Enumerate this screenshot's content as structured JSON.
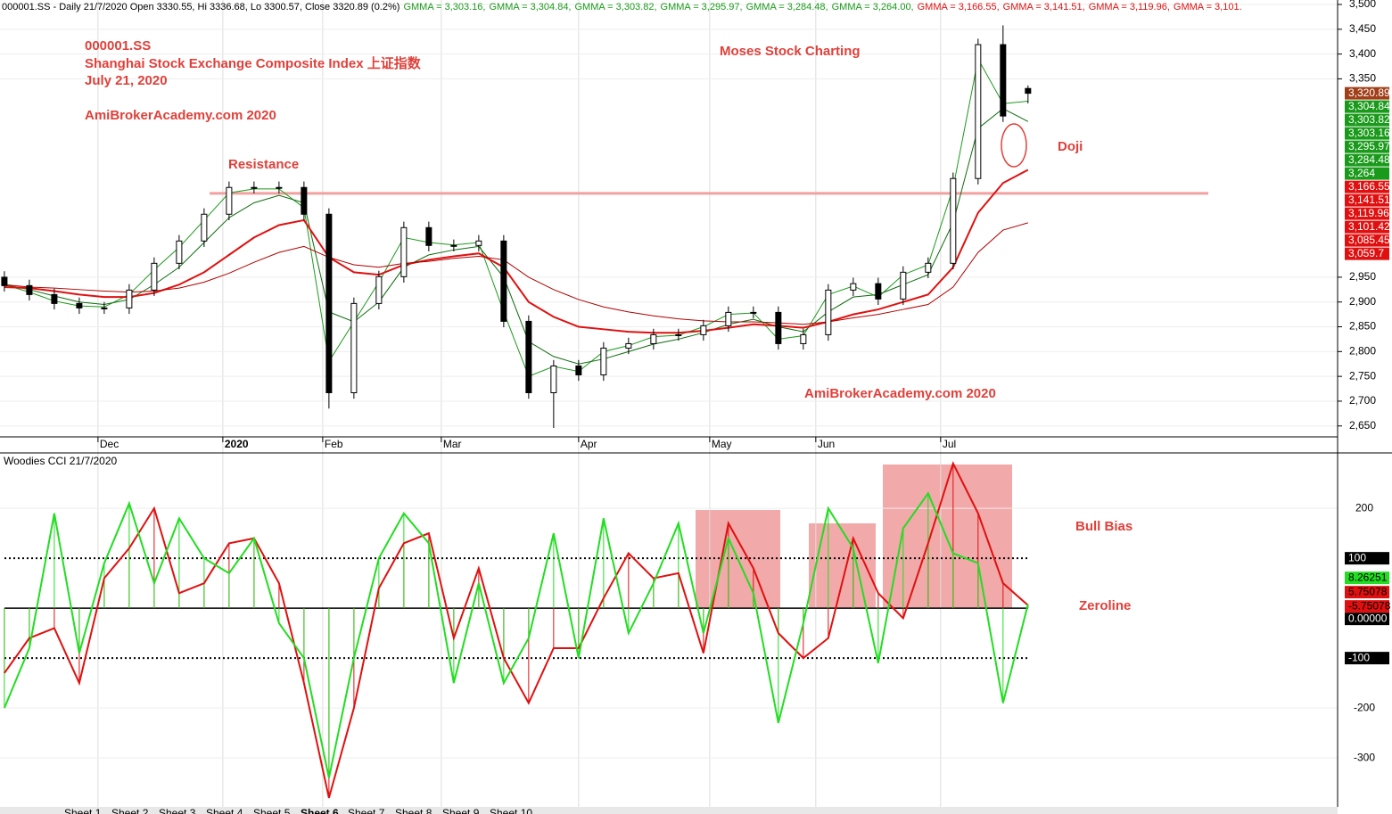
{
  "chart_data": [
    {
      "type": "candlestick",
      "header": "000001.SS - Daily 21/7/2020 Open 3330.55, Hi 3336.68, Lo 3300.57, Close 3320.89 (0.2%)",
      "header_gmma": [
        {
          "label": "GMMA = 3,303.16,",
          "color": "#1a9a1a"
        },
        {
          "label": "GMMA = 3,304.84,",
          "color": "#1a9a1a"
        },
        {
          "label": "GMMA = 3,303.82,",
          "color": "#1a9a1a"
        },
        {
          "label": "GMMA = 3,295.97,",
          "color": "#1a9a1a"
        },
        {
          "label": "GMMA = 3,284.48,",
          "color": "#1a9a1a"
        },
        {
          "label": "GMMA = 3,264.00,",
          "color": "#1a9a1a"
        },
        {
          "label": "GMMA = 3,166.55,",
          "color": "#e01010"
        },
        {
          "label": "GMMA = 3,141.51,",
          "color": "#e01010"
        },
        {
          "label": "GMMA = 3,119.96,",
          "color": "#e01010"
        },
        {
          "label": "GMMA = 3,101.",
          "color": "#e01010"
        }
      ],
      "x": [
        0,
        4,
        8,
        12,
        16,
        20,
        24,
        28,
        32,
        36,
        40,
        44,
        48,
        52,
        56,
        60,
        64,
        68,
        72,
        76,
        80,
        84,
        88,
        92,
        96,
        100,
        104,
        108,
        112,
        116,
        120,
        124,
        128,
        132,
        136,
        140,
        144,
        148,
        152,
        156,
        160,
        164
      ],
      "open": [
        2950,
        2933,
        2915,
        2897,
        2888,
        2888,
        2924,
        2978,
        3023,
        3077,
        3131,
        3131,
        3131,
        3077,
        2717,
        2897,
        2951,
        3050,
        3014,
        3014,
        3023,
        2861,
        2717,
        2771,
        2753,
        2807,
        2816,
        2834,
        2834,
        2852,
        2879,
        2879,
        2816,
        2834,
        2924,
        2937,
        2906,
        2960,
        2978,
        3149,
        3419,
        3330.55
      ],
      "high": [
        2962,
        2945,
        2927,
        2909,
        2900,
        2936,
        2990,
        3035,
        3089,
        3143,
        3143,
        3143,
        3143,
        3089,
        2909,
        2963,
        3062,
        3062,
        3026,
        3035,
        3035,
        2873,
        2783,
        2783,
        2819,
        2828,
        2846,
        2846,
        2864,
        2891,
        2891,
        2891,
        2846,
        2936,
        2949,
        2949,
        2972,
        2990,
        3161,
        3431,
        3458,
        3336.68
      ],
      "low": [
        2921,
        2903,
        2885,
        2876,
        2876,
        2876,
        2912,
        2966,
        3011,
        3065,
        3119,
        3119,
        3065,
        2685,
        2705,
        2885,
        2939,
        3002,
        3002,
        3002,
        2849,
        2705,
        2646,
        2741,
        2741,
        2795,
        2804,
        2822,
        2822,
        2840,
        2867,
        2804,
        2804,
        2822,
        2912,
        2894,
        2894,
        2948,
        2966,
        3137,
        3263,
        3300.57
      ],
      "close": [
        2933,
        2915,
        2897,
        2888,
        2888,
        2924,
        2978,
        3023,
        3077,
        3131,
        3131,
        3131,
        3077,
        2717,
        2897,
        2951,
        3050,
        3014,
        3014,
        3023,
        2861,
        2717,
        2771,
        2753,
        2807,
        2816,
        2834,
        2834,
        2852,
        2879,
        2879,
        2816,
        2834,
        2924,
        2937,
        2906,
        2960,
        2978,
        3149,
        3419,
        3275,
        3320.89
      ],
      "series": [
        {
          "name": "GMMA fast",
          "color": "#1a9a1a",
          "values": [
            2935,
            2920,
            2902,
            2892,
            2890,
            2915,
            2965,
            3010,
            3065,
            3120,
            3128,
            3128,
            3090,
            2780,
            2860,
            2940,
            3030,
            3020,
            3015,
            3020,
            2880,
            2750,
            2770,
            2760,
            2800,
            2812,
            2830,
            2833,
            2850,
            2875,
            2878,
            2825,
            2832,
            2915,
            2932,
            2910,
            2955,
            2975,
            3130,
            3390,
            3300,
            3304.84
          ]
        },
        {
          "name": "GMMA short slow",
          "color": "#0d6b0d",
          "values": [
            2935,
            2925,
            2912,
            2900,
            2895,
            2905,
            2935,
            2970,
            3020,
            3070,
            3100,
            3115,
            3100,
            2880,
            2860,
            2900,
            2970,
            2995,
            3005,
            3012,
            2950,
            2820,
            2790,
            2775,
            2785,
            2800,
            2815,
            2825,
            2838,
            2855,
            2865,
            2850,
            2840,
            2880,
            2910,
            2915,
            2935,
            2955,
            3060,
            3250,
            3290,
            3264
          ]
        },
        {
          "name": "GMMA long fast",
          "color": "#e01010",
          "values": [
            2930,
            2928,
            2922,
            2915,
            2910,
            2910,
            2918,
            2935,
            2960,
            2995,
            3030,
            3055,
            3065,
            2990,
            2960,
            2955,
            2975,
            2985,
            2992,
            2998,
            2970,
            2900,
            2870,
            2850,
            2845,
            2840,
            2838,
            2838,
            2842,
            2848,
            2855,
            2852,
            2848,
            2860,
            2875,
            2885,
            2900,
            2915,
            2970,
            3080,
            3140,
            3166.55
          ]
        },
        {
          "name": "GMMA long slow",
          "color": "#b00000",
          "values": [
            2935,
            2930,
            2928,
            2925,
            2922,
            2920,
            2922,
            2928,
            2940,
            2958,
            2980,
            3000,
            3012,
            2990,
            2975,
            2970,
            2978,
            2982,
            2988,
            2992,
            2985,
            2950,
            2925,
            2905,
            2890,
            2880,
            2872,
            2866,
            2862,
            2860,
            2860,
            2858,
            2855,
            2860,
            2868,
            2875,
            2885,
            2895,
            2930,
            3000,
            3045,
            3059.7
          ]
        }
      ],
      "resistance": 3119,
      "xlim": [
        -0.7,
        213.6
      ],
      "xticks": [
        {
          "value": 15,
          "label": "Dec"
        },
        {
          "value": 35,
          "label": "2020"
        },
        {
          "value": 51,
          "label": "Feb"
        },
        {
          "value": 70,
          "label": "Mar"
        },
        {
          "value": 92,
          "label": "Apr"
        },
        {
          "value": 113,
          "label": "May"
        },
        {
          "value": 130,
          "label": "Jun"
        },
        {
          "value": 150,
          "label": "Jul"
        }
      ],
      "ylim": [
        2628,
        3509
      ],
      "yticks": [
        {
          "value": 2650,
          "label": "2,650"
        },
        {
          "value": 2700,
          "label": "2,700"
        },
        {
          "value": 2750,
          "label": "2,750"
        },
        {
          "value": 2800,
          "label": "2,800"
        },
        {
          "value": 2850,
          "label": "2,850"
        },
        {
          "value": 2900,
          "label": "2,900"
        },
        {
          "value": 2950,
          "label": "2,950"
        },
        {
          "value": 3350,
          "label": "3,350"
        },
        {
          "value": 3400,
          "label": "3,400"
        },
        {
          "value": 3450,
          "label": "3,450"
        },
        {
          "value": 3500,
          "label": "3,500"
        }
      ],
      "price_tags": [
        {
          "value": 3320.89,
          "label": "3,320.89",
          "color": "#a0401a"
        },
        {
          "value": 3304.84,
          "label": "3,304.84",
          "color": "#1a9a1a"
        },
        {
          "value": 3303.82,
          "label": "3,303.82",
          "color": "#1a9a1a"
        },
        {
          "value": 3303.16,
          "label": "3,303.16",
          "color": "#1a9a1a"
        },
        {
          "value": 3295.97,
          "label": "3,295.97",
          "color": "#1a9a1a"
        },
        {
          "value": 3284.48,
          "label": "3,284.48",
          "color": "#1a9a1a"
        },
        {
          "value": 3264,
          "label": "3,264",
          "color": "#1a9a1a"
        },
        {
          "value": 3166.55,
          "label": "3,166.55",
          "color": "#e01010"
        },
        {
          "value": 3141.51,
          "label": "3,141.51",
          "color": "#e01010"
        },
        {
          "value": 3119.96,
          "label": "3,119.96",
          "color": "#e01010"
        },
        {
          "value": 3101.42,
          "label": "3,101.42",
          "color": "#e01010"
        },
        {
          "value": 3085.45,
          "label": "3,085.45",
          "color": "#e01010"
        },
        {
          "value": 3059.7,
          "label": "3,059.7",
          "color": "#e01010"
        }
      ]
    },
    {
      "type": "line",
      "title": "Woodies CCI  21/7/2020",
      "x": [
        0,
        4,
        8,
        12,
        16,
        20,
        24,
        28,
        32,
        36,
        40,
        44,
        48,
        52,
        56,
        60,
        64,
        68,
        72,
        76,
        80,
        84,
        88,
        92,
        96,
        100,
        104,
        108,
        112,
        116,
        120,
        124,
        128,
        132,
        136,
        140,
        144,
        148,
        152,
        156,
        160,
        164
      ],
      "series": [
        {
          "name": "CCI",
          "color": "#e01010",
          "values": [
            -130,
            -60,
            -40,
            -150,
            60,
            120,
            200,
            30,
            50,
            130,
            140,
            50,
            -150,
            -380,
            -200,
            40,
            130,
            150,
            -60,
            80,
            -100,
            -190,
            -80,
            -80,
            20,
            110,
            60,
            70,
            -90,
            170,
            80,
            -50,
            -100,
            -60,
            140,
            30,
            -20,
            130,
            290,
            190,
            50,
            5.75078
          ]
        },
        {
          "name": "Turbo CCI",
          "color": "#22dd22",
          "values": [
            -200,
            -80,
            190,
            -90,
            90,
            210,
            50,
            180,
            100,
            70,
            140,
            -30,
            -100,
            -340,
            -100,
            100,
            190,
            130,
            -150,
            50,
            -150,
            -60,
            150,
            -100,
            180,
            -50,
            50,
            170,
            -50,
            140,
            30,
            -230,
            -30,
            200,
            120,
            -110,
            160,
            230,
            110,
            90,
            -190,
            8.26251
          ]
        }
      ],
      "xlim": [
        -0.7,
        213.6
      ],
      "ylim": [
        -398,
        311
      ],
      "yticks": [
        -300,
        -200,
        200
      ],
      "levels": [
        {
          "value": 100,
          "label": "100"
        },
        {
          "value": -100,
          "label": "-100"
        },
        {
          "value": 0,
          "label": "0.00000"
        }
      ],
      "tags": [
        {
          "value": 8.26251,
          "label": "8.26251",
          "color": "#22dd22"
        },
        {
          "value": 5.75078,
          "label": "5.75078",
          "color": "#e01010"
        },
        {
          "value": -5.75078,
          "label": "-5.75078",
          "color": "#e01010"
        }
      ]
    }
  ],
  "annotations": {
    "symbol": "000001.SS",
    "name": "Shanghai Stock Exchange Composite Index 上证指数",
    "date": "July 21, 2020",
    "site": "AmiBrokerAcademy.com  2020",
    "resistance": "Resistance",
    "moses": "Moses Stock Charting",
    "doji": "Doji",
    "site2": "AmiBrokerAcademy.com  2020",
    "bull": "Bull Bias",
    "zero": "Zeroline"
  },
  "tabs": [
    "Sheet 1",
    "Sheet 2",
    "Sheet 3",
    "Sheet 4",
    "Sheet 5",
    "Sheet 6",
    "Sheet 7",
    "Sheet 8",
    "Sheet 9",
    "Sheet 10"
  ]
}
